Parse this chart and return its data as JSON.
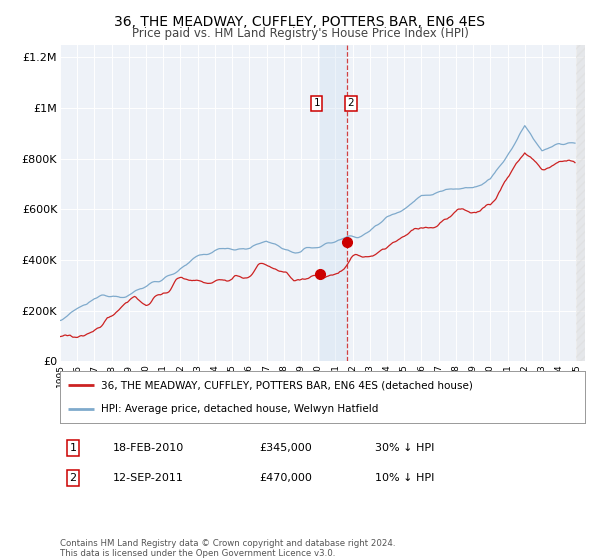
{
  "title": "36, THE MEADWAY, CUFFLEY, POTTERS BAR, EN6 4ES",
  "subtitle": "Price paid vs. HM Land Registry's House Price Index (HPI)",
  "title_fontsize": 10,
  "subtitle_fontsize": 8.5,
  "background_color": "#ffffff",
  "plot_bg_color": "#eef2f8",
  "grid_color": "#ffffff",
  "xlim_start": 1995.0,
  "xlim_end": 2025.5,
  "ylim_min": 0,
  "ylim_max": 1250000,
  "yticks": [
    0,
    200000,
    400000,
    600000,
    800000,
    1000000,
    1200000
  ],
  "ytick_labels": [
    "£0",
    "£200K",
    "£400K",
    "£600K",
    "£800K",
    "£1M",
    "£1.2M"
  ],
  "hpi_color": "#7faacc",
  "property_color": "#cc2222",
  "marker_color": "#cc0000",
  "sale1_date": 2010.12,
  "sale1_price": 345000,
  "sale2_date": 2011.7,
  "sale2_price": 470000,
  "legend_line1": "36, THE MEADWAY, CUFFLEY, POTTERS BAR, EN6 4ES (detached house)",
  "legend_line2": "HPI: Average price, detached house, Welwyn Hatfield",
  "footer": "Contains HM Land Registry data © Crown copyright and database right 2024.\nThis data is licensed under the Open Government Licence v3.0.",
  "xtick_years": [
    1995,
    1996,
    1997,
    1998,
    1999,
    2000,
    2001,
    2002,
    2003,
    2004,
    2005,
    2006,
    2007,
    2008,
    2009,
    2010,
    2011,
    2012,
    2013,
    2014,
    2015,
    2016,
    2017,
    2018,
    2019,
    2020,
    2021,
    2022,
    2023,
    2024,
    2025
  ]
}
